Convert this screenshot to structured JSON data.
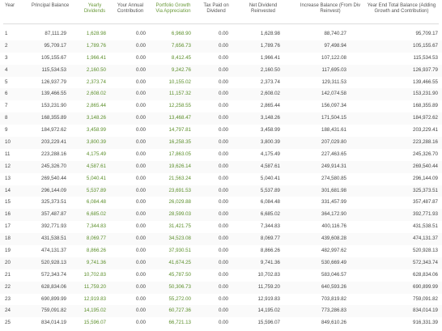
{
  "table": {
    "columns": [
      {
        "key": "year",
        "label": "Year"
      },
      {
        "key": "principal",
        "label": "Principal Balance"
      },
      {
        "key": "dividends",
        "label": "Yearly Dividends",
        "accent": true
      },
      {
        "key": "contribution",
        "label": "Your Annual Contribution"
      },
      {
        "key": "growth",
        "label": "Portfolio Growth Via Appreciation",
        "accent": true
      },
      {
        "key": "tax",
        "label": "Tax Paid on Dividend"
      },
      {
        "key": "net",
        "label": "Net Dividend Reinvested"
      },
      {
        "key": "increase",
        "label": "Increase Balance (From Div Reinvest)"
      },
      {
        "key": "yearend",
        "label": "Year End Total Balance (Adding Growth and Contribution)"
      }
    ],
    "accent_color": "#5c8f2c",
    "rows": [
      {
        "year": "1",
        "principal": "87,111.29",
        "dividends": "1,628.98",
        "contribution": "0.00",
        "growth": "6,968.90",
        "tax": "0.00",
        "net": "1,628.98",
        "increase": "88,740.27",
        "yearend": "95,709.17"
      },
      {
        "year": "2",
        "principal": "95,709.17",
        "dividends": "1,789.76",
        "contribution": "0.00",
        "growth": "7,656.73",
        "tax": "0.00",
        "net": "1,789.76",
        "increase": "97,498.94",
        "yearend": "105,155.67"
      },
      {
        "year": "3",
        "principal": "105,155.67",
        "dividends": "1,966.41",
        "contribution": "0.00",
        "growth": "8,412.45",
        "tax": "0.00",
        "net": "1,966.41",
        "increase": "107,122.08",
        "yearend": "115,534.53"
      },
      {
        "year": "4",
        "principal": "115,534.53",
        "dividends": "2,160.50",
        "contribution": "0.00",
        "growth": "9,242.76",
        "tax": "0.00",
        "net": "2,160.50",
        "increase": "117,695.03",
        "yearend": "126,937.79"
      },
      {
        "year": "5",
        "principal": "126,937.79",
        "dividends": "2,373.74",
        "contribution": "0.00",
        "growth": "10,155.02",
        "tax": "0.00",
        "net": "2,373.74",
        "increase": "129,311.53",
        "yearend": "139,466.55"
      },
      {
        "year": "6",
        "principal": "139,466.55",
        "dividends": "2,608.02",
        "contribution": "0.00",
        "growth": "11,157.32",
        "tax": "0.00",
        "net": "2,608.02",
        "increase": "142,074.58",
        "yearend": "153,231.90"
      },
      {
        "year": "7",
        "principal": "153,231.90",
        "dividends": "2,865.44",
        "contribution": "0.00",
        "growth": "12,258.55",
        "tax": "0.00",
        "net": "2,865.44",
        "increase": "156,097.34",
        "yearend": "168,355.89"
      },
      {
        "year": "8",
        "principal": "168,355.89",
        "dividends": "3,148.26",
        "contribution": "0.00",
        "growth": "13,468.47",
        "tax": "0.00",
        "net": "3,148.26",
        "increase": "171,504.15",
        "yearend": "184,972.62"
      },
      {
        "year": "9",
        "principal": "184,972.62",
        "dividends": "3,458.99",
        "contribution": "0.00",
        "growth": "14,797.81",
        "tax": "0.00",
        "net": "3,458.99",
        "increase": "188,431.61",
        "yearend": "203,229.41"
      },
      {
        "year": "10",
        "principal": "203,229.41",
        "dividends": "3,800.39",
        "contribution": "0.00",
        "growth": "16,258.35",
        "tax": "0.00",
        "net": "3,800.39",
        "increase": "207,029.80",
        "yearend": "223,288.16"
      },
      {
        "year": "11",
        "principal": "223,288.16",
        "dividends": "4,175.49",
        "contribution": "0.00",
        "growth": "17,863.05",
        "tax": "0.00",
        "net": "4,175.49",
        "increase": "227,463.65",
        "yearend": "245,326.70"
      },
      {
        "year": "12",
        "principal": "245,326.70",
        "dividends": "4,587.61",
        "contribution": "0.00",
        "growth": "19,626.14",
        "tax": "0.00",
        "net": "4,587.61",
        "increase": "249,914.31",
        "yearend": "269,540.44"
      },
      {
        "year": "13",
        "principal": "269,540.44",
        "dividends": "5,040.41",
        "contribution": "0.00",
        "growth": "21,563.24",
        "tax": "0.00",
        "net": "5,040.41",
        "increase": "274,580.85",
        "yearend": "296,144.09"
      },
      {
        "year": "14",
        "principal": "296,144.09",
        "dividends": "5,537.89",
        "contribution": "0.00",
        "growth": "23,691.53",
        "tax": "0.00",
        "net": "5,537.89",
        "increase": "301,681.98",
        "yearend": "325,373.51"
      },
      {
        "year": "15",
        "principal": "325,373.51",
        "dividends": "6,084.48",
        "contribution": "0.00",
        "growth": "26,029.88",
        "tax": "0.00",
        "net": "6,084.48",
        "increase": "331,457.99",
        "yearend": "357,487.87"
      },
      {
        "year": "16",
        "principal": "357,487.87",
        "dividends": "6,685.02",
        "contribution": "0.00",
        "growth": "28,599.03",
        "tax": "0.00",
        "net": "6,685.02",
        "increase": "364,172.90",
        "yearend": "392,771.93"
      },
      {
        "year": "17",
        "principal": "392,771.93",
        "dividends": "7,344.83",
        "contribution": "0.00",
        "growth": "31,421.75",
        "tax": "0.00",
        "net": "7,344.83",
        "increase": "400,116.76",
        "yearend": "431,538.51"
      },
      {
        "year": "18",
        "principal": "431,538.51",
        "dividends": "8,069.77",
        "contribution": "0.00",
        "growth": "34,523.08",
        "tax": "0.00",
        "net": "8,069.77",
        "increase": "439,608.28",
        "yearend": "474,131.37"
      },
      {
        "year": "19",
        "principal": "474,131.37",
        "dividends": "8,866.26",
        "contribution": "0.00",
        "growth": "37,930.51",
        "tax": "0.00",
        "net": "8,866.26",
        "increase": "482,997.62",
        "yearend": "520,928.13"
      },
      {
        "year": "20",
        "principal": "520,928.13",
        "dividends": "9,741.36",
        "contribution": "0.00",
        "growth": "41,674.25",
        "tax": "0.00",
        "net": "9,741.36",
        "increase": "530,669.49",
        "yearend": "572,343.74"
      },
      {
        "year": "21",
        "principal": "572,343.74",
        "dividends": "10,702.83",
        "contribution": "0.00",
        "growth": "45,787.50",
        "tax": "0.00",
        "net": "10,702.83",
        "increase": "583,046.57",
        "yearend": "628,834.06"
      },
      {
        "year": "22",
        "principal": "628,834.06",
        "dividends": "11,759.20",
        "contribution": "0.00",
        "growth": "50,306.73",
        "tax": "0.00",
        "net": "11,759.20",
        "increase": "640,593.26",
        "yearend": "690,899.99"
      },
      {
        "year": "23",
        "principal": "690,899.99",
        "dividends": "12,919.83",
        "contribution": "0.00",
        "growth": "55,272.00",
        "tax": "0.00",
        "net": "12,919.83",
        "increase": "703,819.82",
        "yearend": "759,091.82"
      },
      {
        "year": "24",
        "principal": "759,091.82",
        "dividends": "14,195.02",
        "contribution": "0.00",
        "growth": "60,727.36",
        "tax": "0.00",
        "net": "14,195.02",
        "increase": "773,286.83",
        "yearend": "834,014.19"
      },
      {
        "year": "25",
        "principal": "834,014.19",
        "dividends": "15,596.07",
        "contribution": "0.00",
        "growth": "66,721.13",
        "tax": "0.00",
        "net": "15,596.07",
        "increase": "849,610.26",
        "yearend": "916,331.39"
      }
    ]
  }
}
